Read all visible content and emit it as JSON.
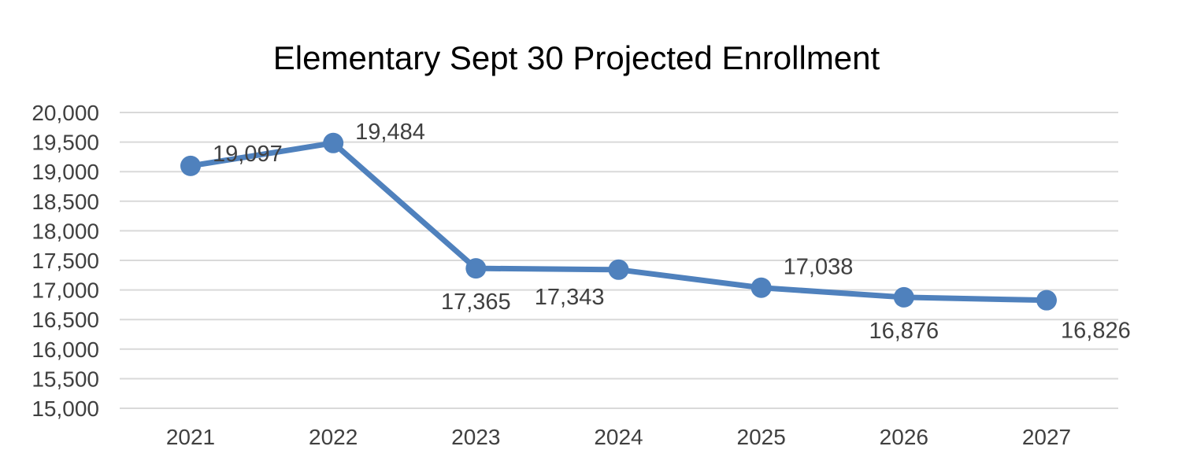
{
  "chart_data": {
    "type": "line",
    "title": "Elementary Sept 30 Projected Enrollment",
    "xlabel": "",
    "ylabel": "",
    "categories": [
      "2021",
      "2022",
      "2023",
      "2024",
      "2025",
      "2026",
      "2027"
    ],
    "series": [
      {
        "values": [
          19097,
          19484,
          17365,
          17343,
          17038,
          16876,
          16826
        ],
        "data_labels": [
          "19,097",
          "19,484",
          "17,365",
          "17,343",
          "17,038",
          "16,876",
          "16,826"
        ],
        "label_positions": [
          "right",
          "right",
          "below",
          "below-left",
          "right",
          "below",
          "below-right"
        ]
      }
    ],
    "ylim": [
      15000,
      20000
    ],
    "y_ticks": [
      15000,
      15500,
      16000,
      16500,
      17000,
      17500,
      18000,
      18500,
      19000,
      19500,
      20000
    ],
    "y_tick_labels": [
      "15,000",
      "15,500",
      "16,000",
      "16,500",
      "17,000",
      "17,500",
      "18,000",
      "18,500",
      "19,000",
      "19,500",
      "20,000"
    ],
    "grid": true,
    "legend": "none",
    "colors": {
      "series": "#4f81bd",
      "grid": "#d9d9d9",
      "text": "#404040",
      "title": "#000000"
    }
  }
}
